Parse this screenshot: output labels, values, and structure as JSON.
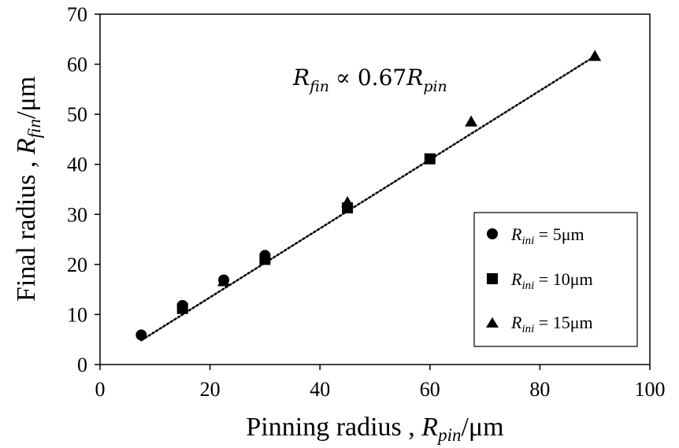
{
  "chart_data": {
    "type": "scatter",
    "title": "",
    "annotation": {
      "lhs": "R",
      "lhs_sub": "fin",
      "op": "∝ 0.67",
      "rhs": "R",
      "rhs_sub": "pin"
    },
    "xlabel": {
      "text": "Pinning radius , ",
      "sym": "R",
      "sub": "pin",
      "unit": "/μm"
    },
    "ylabel": {
      "text": "Final radius , ",
      "sym": "R",
      "sub": "fin",
      "unit": "/μm"
    },
    "xlim": [
      0,
      100
    ],
    "ylim": [
      0,
      70
    ],
    "xticks": [
      "0",
      "20",
      "40",
      "60",
      "80",
      "100"
    ],
    "yticks": [
      "0",
      "10",
      "20",
      "30",
      "40",
      "50",
      "60",
      "70"
    ],
    "grid": false,
    "legend_position": "right",
    "trendline": {
      "slope": 0.67,
      "x_range": [
        7.5,
        90
      ],
      "style": "dotted"
    },
    "series": [
      {
        "name_prefix": "R",
        "name_sub": "ini",
        "name_value": " = 5μm",
        "marker": "circle",
        "x": [
          7.5,
          15,
          22.5,
          30
        ],
        "y": [
          5.9,
          11.8,
          16.9,
          21.8
        ]
      },
      {
        "name_prefix": "R",
        "name_sub": "ini",
        "name_value": " = 10μm",
        "marker": "square",
        "x": [
          15,
          30,
          45,
          60
        ],
        "y": [
          11.2,
          21.0,
          31.3,
          41.1
        ]
      },
      {
        "name_prefix": "R",
        "name_sub": "ini",
        "name_value": " = 15μm",
        "marker": "triangle",
        "x": [
          22.5,
          45,
          67.5,
          90
        ],
        "y": [
          16.6,
          32.4,
          48.5,
          61.6
        ]
      }
    ]
  }
}
